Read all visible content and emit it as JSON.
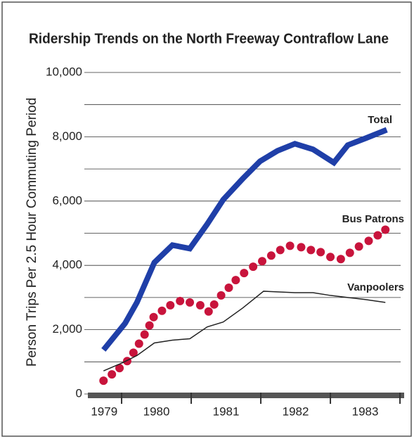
{
  "chart_data": {
    "type": "line",
    "title": "Ridership Trends on the North Freeway Contraflow Lane",
    "ylabel": "Person Trips Per 2.5 Hour Commuting Period",
    "xlim": [
      1979.515,
      1984.06
    ],
    "ylim": [
      0,
      10000
    ],
    "yticks": [
      {
        "value": 0,
        "label": "0"
      },
      {
        "value": 2000,
        "label": "2,000"
      },
      {
        "value": 4000,
        "label": "4,000"
      },
      {
        "value": 6000,
        "label": "6,000"
      },
      {
        "value": 8000,
        "label": "8,000"
      },
      {
        "value": 10000,
        "label": "10,000"
      }
    ],
    "minor_yticks": [
      1000,
      3000,
      5000,
      7000,
      9000
    ],
    "xticks": [
      {
        "value": 1979.75,
        "label": "1979"
      },
      {
        "value": 1980.5,
        "label": "1980"
      },
      {
        "value": 1981.5,
        "label": "1981"
      },
      {
        "value": 1982.5,
        "label": "1982"
      },
      {
        "value": 1983.5,
        "label": "1983"
      }
    ],
    "year_boundaries": [
      1980,
      1981,
      1982,
      1983,
      1984
    ],
    "grid": true,
    "series": [
      {
        "name": "Total",
        "color": "#1f3fa8",
        "style": "line",
        "x": [
          1979.74,
          1980.05,
          1980.22,
          1980.47,
          1980.73,
          1980.98,
          1981.23,
          1981.46,
          1981.74,
          1981.99,
          1982.24,
          1982.49,
          1982.75,
          1983.05,
          1983.25,
          1983.51,
          1983.81
        ],
        "values": [
          1370,
          2196,
          2848,
          4087,
          4630,
          4522,
          5283,
          6043,
          6696,
          7239,
          7565,
          7783,
          7609,
          7196,
          7739,
          7957,
          8217
        ]
      },
      {
        "name": "Bus Patrons",
        "color": "#c8143c",
        "style": "dots",
        "x": [
          1979.74,
          1979.86,
          1979.97,
          1980.08,
          1980.17,
          1980.25,
          1980.33,
          1980.4,
          1980.46,
          1980.58,
          1980.7,
          1980.84,
          1980.98,
          1981.13,
          1981.25,
          1981.33,
          1981.43,
          1981.54,
          1981.64,
          1981.76,
          1981.89,
          1982.02,
          1982.15,
          1982.28,
          1982.42,
          1982.58,
          1982.72,
          1982.86,
          1983.0,
          1983.15,
          1983.28,
          1983.41,
          1983.55,
          1983.68,
          1983.79
        ],
        "values": [
          413,
          609,
          804,
          1022,
          1283,
          1565,
          1848,
          2130,
          2391,
          2587,
          2761,
          2891,
          2848,
          2761,
          2565,
          2783,
          3065,
          3304,
          3543,
          3761,
          3957,
          4130,
          4304,
          4478,
          4609,
          4565,
          4478,
          4413,
          4261,
          4196,
          4391,
          4587,
          4761,
          4935,
          5109
        ]
      },
      {
        "name": "Vanpoolers",
        "color": "#222222",
        "style": "thin",
        "x": [
          1979.74,
          1980.02,
          1980.22,
          1980.47,
          1980.73,
          1980.98,
          1981.23,
          1981.46,
          1981.74,
          1982.04,
          1982.49,
          1982.75,
          1983.0,
          1983.25,
          1983.51,
          1983.79
        ],
        "values": [
          717,
          978,
          1196,
          1587,
          1674,
          1717,
          2087,
          2239,
          2674,
          3196,
          3152,
          3152,
          3065,
          3000,
          2935,
          2848
        ]
      }
    ]
  }
}
